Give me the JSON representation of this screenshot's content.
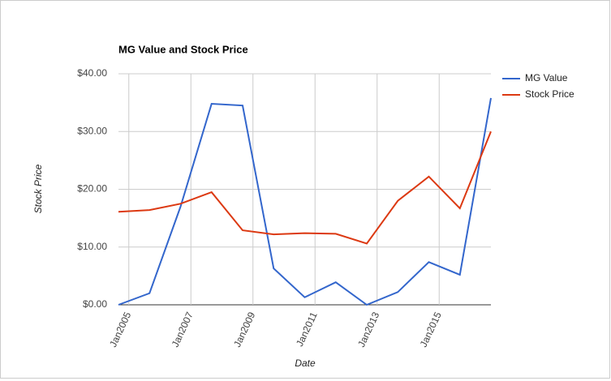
{
  "chart_data": {
    "type": "line",
    "title": "MG Value and Stock Price",
    "x_label": "Date",
    "y_label": "Stock Price",
    "x": [
      "2004-09",
      "2005-09",
      "2006-09",
      "2007-09",
      "2008-09",
      "2009-09",
      "2010-09",
      "2011-09",
      "2012-09",
      "2013-09",
      "2014-09",
      "2015-09",
      "2016-09"
    ],
    "series": [
      {
        "name": "MG Value",
        "color": "#3366cc",
        "values": [
          0.0,
          2.0,
          17.0,
          34.8,
          34.5,
          6.3,
          1.3,
          3.9,
          0.0,
          2.2,
          7.4,
          5.2,
          35.8
        ]
      },
      {
        "name": "Stock Price",
        "color": "#dc3912",
        "values": [
          16.1,
          16.4,
          17.5,
          19.5,
          12.9,
          12.2,
          12.4,
          12.3,
          10.6,
          18.0,
          22.2,
          16.7,
          30.0
        ]
      }
    ],
    "xlim": [
      "2004-09",
      "2016-09"
    ],
    "xticks": [
      {
        "value": "2005-01",
        "label": "Jan2005"
      },
      {
        "value": "2007-01",
        "label": "Jan2007"
      },
      {
        "value": "2009-01",
        "label": "Jan2009"
      },
      {
        "value": "2011-01",
        "label": "Jan2011"
      },
      {
        "value": "2013-01",
        "label": "Jan2013"
      },
      {
        "value": "2015-01",
        "label": "Jan2015"
      }
    ],
    "ylim": [
      0,
      40
    ],
    "yticks": [
      {
        "value": 0,
        "label": "$0.00"
      },
      {
        "value": 10,
        "label": "$10.00"
      },
      {
        "value": 20,
        "label": "$20.00"
      },
      {
        "value": 30,
        "label": "$30.00"
      },
      {
        "value": 40,
        "label": "$40.00"
      }
    ],
    "grid": true,
    "legend": "right"
  }
}
